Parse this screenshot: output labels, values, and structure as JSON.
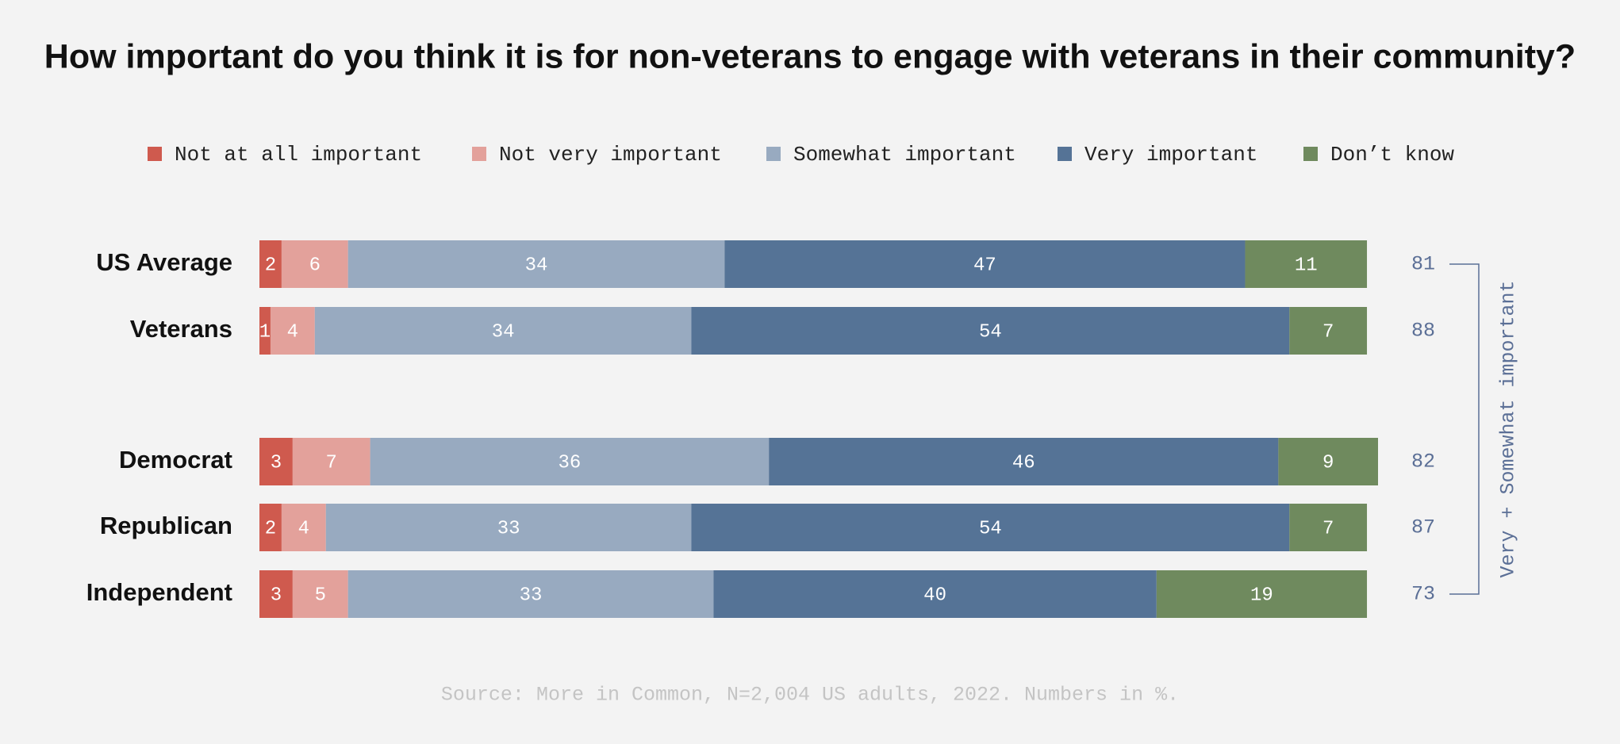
{
  "chart_data": {
    "type": "stacked-bar",
    "title": "How important do you think it is for non-veterans to engage with veterans in their community?",
    "categories": [
      "US Average",
      "Veterans",
      "Democrat",
      "Republican",
      "Independent"
    ],
    "series": [
      {
        "name": "Not at all important",
        "color": "#cf5a4e",
        "values": [
          2,
          1,
          3,
          2,
          3
        ]
      },
      {
        "name": "Not very important",
        "color": "#e3a19b",
        "values": [
          6,
          4,
          7,
          4,
          5
        ]
      },
      {
        "name": "Somewhat important",
        "color": "#98aac0",
        "values": [
          34,
          34,
          36,
          33,
          33
        ]
      },
      {
        "name": "Very important",
        "color": "#557396",
        "values": [
          47,
          54,
          46,
          54,
          40
        ]
      },
      {
        "name": "Don’t know",
        "color": "#6f8a5e",
        "values": [
          11,
          7,
          9,
          7,
          19
        ]
      }
    ],
    "totals": {
      "label": "Very + Somewhat important",
      "color": "#5b6f96",
      "values": [
        81,
        88,
        82,
        87,
        73
      ]
    },
    "source": "Source: More in Common, N=2,004 US adults, 2022. Numbers in %."
  }
}
